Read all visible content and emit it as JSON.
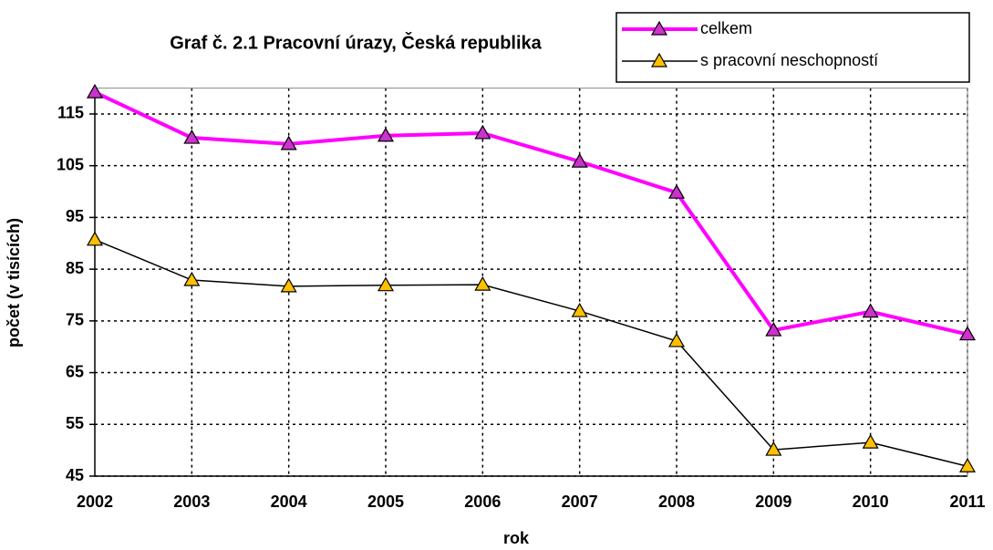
{
  "chart_data": {
    "type": "line",
    "title": "Graf č. 2.1  Pracovní úrazy, Česká republika",
    "x_label": "rok",
    "y_label": "počet (v tisících)",
    "categories": [
      "2002",
      "2003",
      "2004",
      "2005",
      "2006",
      "2007",
      "2008",
      "2009",
      "2010",
      "2011"
    ],
    "series": [
      {
        "name": "celkem",
        "color": "#ff00ff",
        "marker_color": "#cc33cc",
        "values": [
          119.2,
          110.4,
          109.2,
          110.8,
          111.3,
          105.8,
          99.8,
          73.2,
          76.8,
          72.4
        ]
      },
      {
        "name": "s pracovní neschopností",
        "color": "#000000",
        "marker_color": "#ffc000",
        "values": [
          90.7,
          82.9,
          81.7,
          81.9,
          82.0,
          76.9,
          71.1,
          50.1,
          51.5,
          46.9
        ]
      }
    ],
    "ylim": [
      45,
      120
    ],
    "yticks": [
      45,
      55,
      65,
      75,
      85,
      95,
      105,
      115
    ],
    "grid": true
  }
}
